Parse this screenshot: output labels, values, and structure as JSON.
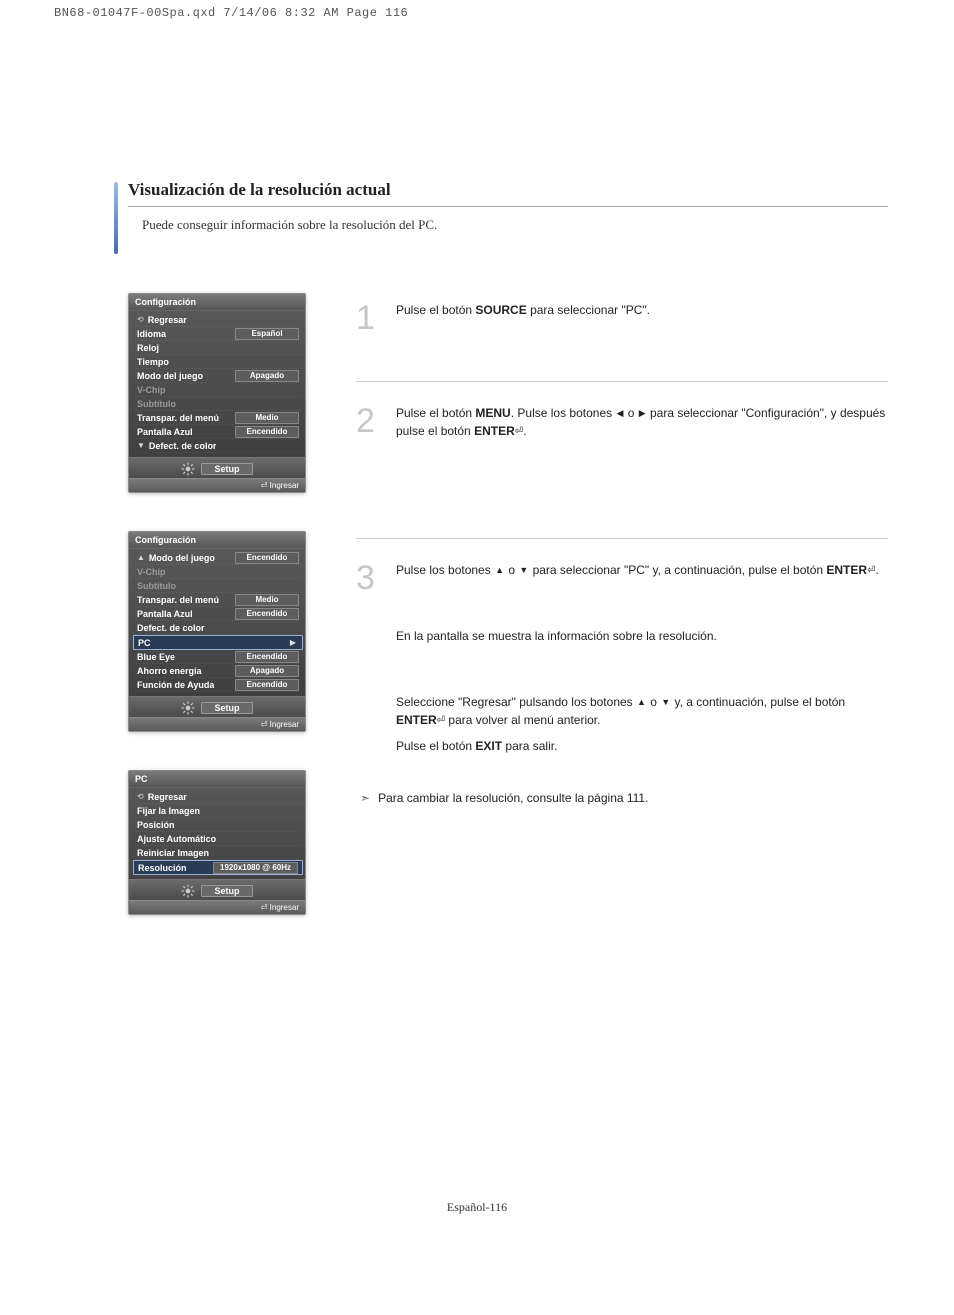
{
  "print_header": "BN68-01047F-00Spa.qxd  7/14/06  8:32 AM  Page 116",
  "title": "Visualización de la resolución actual",
  "intro": "Puede conseguir información sobre la resolución del PC.",
  "steps": {
    "s1": {
      "num": "1",
      "text_a": "Pulse el botón ",
      "bold1": "SOURCE",
      "text_b": " para seleccionar \"PC\"."
    },
    "s2": {
      "num": "2",
      "text_a": "Pulse el botón ",
      "bold1": "MENU",
      "text_b": ". Pulse los botones ",
      "text_c": " o ",
      "text_d": " para seleccionar \"Configuración\", y después pulse el botón ",
      "bold2": "ENTER",
      "text_e": "."
    },
    "s3": {
      "num": "3",
      "text_a": "Pulse los botones ",
      "text_b": " o ",
      "text_c": " para seleccionar \"PC\" y, a continuación, pulse el botón ",
      "bold1": "ENTER",
      "text_d": ".",
      "info": "En la pantalla se muestra la información sobre la resolución.",
      "ret_a": "Seleccione \"Regresar\" pulsando los botones ",
      "ret_b": " o ",
      "ret_c": " y, a continuación, pulse el botón ",
      "ret_bold": "ENTER",
      "ret_d": " para volver al menú anterior.",
      "exit_a": "Pulse el botón ",
      "exit_bold": "EXIT",
      "exit_b": " para salir."
    }
  },
  "note": "Para cambiar la resolución, consulte la página 111.",
  "osd_common": {
    "setup": "Setup",
    "ingresar": "Ingresar"
  },
  "osd1": {
    "title": "Configuración",
    "rows": [
      {
        "label": "Regresar",
        "value": "",
        "type": "return"
      },
      {
        "label": "Idioma",
        "value": "Español"
      },
      {
        "label": "Reloj",
        "value": ""
      },
      {
        "label": "Tiempo",
        "value": ""
      },
      {
        "label": "Modo del juego",
        "value": "Apagado"
      },
      {
        "label": "V-Chip",
        "value": "",
        "disabled": true
      },
      {
        "label": "Subtítulo",
        "value": "",
        "disabled": true
      },
      {
        "label": "Transpar. del menú",
        "value": "Medio"
      },
      {
        "label": "Pantalla Azul",
        "value": "Encendido"
      },
      {
        "label": "Defect. de color",
        "value": "",
        "arrow": "down"
      }
    ]
  },
  "osd2": {
    "title": "Configuración",
    "rows": [
      {
        "label": "Modo del juego",
        "value": "Encendido",
        "arrow": "up"
      },
      {
        "label": "V-Chip",
        "value": "",
        "disabled": true
      },
      {
        "label": "Subtítulo",
        "value": "",
        "disabled": true
      },
      {
        "label": "Transpar. del menú",
        "value": "Medio"
      },
      {
        "label": "Pantalla Azul",
        "value": "Encendido"
      },
      {
        "label": "Defect. de color",
        "value": ""
      },
      {
        "label": "PC",
        "value": "",
        "selected": true,
        "right": true
      },
      {
        "label": "Blue Eye",
        "value": "Encendido"
      },
      {
        "label": "Ahorro energía",
        "value": "Apagado"
      },
      {
        "label": "Función de Ayuda",
        "value": "Encendido"
      }
    ]
  },
  "osd3": {
    "title": "PC",
    "rows": [
      {
        "label": "Regresar",
        "value": "",
        "type": "return"
      },
      {
        "label": "Fijar la Imagen",
        "value": ""
      },
      {
        "label": "Posición",
        "value": ""
      },
      {
        "label": "Ajuste Automático",
        "value": ""
      },
      {
        "label": "Reiniciar Imagen",
        "value": ""
      },
      {
        "label": "Resolución",
        "value": "1920x1080 @ 60Hz",
        "selected": true
      }
    ]
  },
  "footer": "Español-116"
}
